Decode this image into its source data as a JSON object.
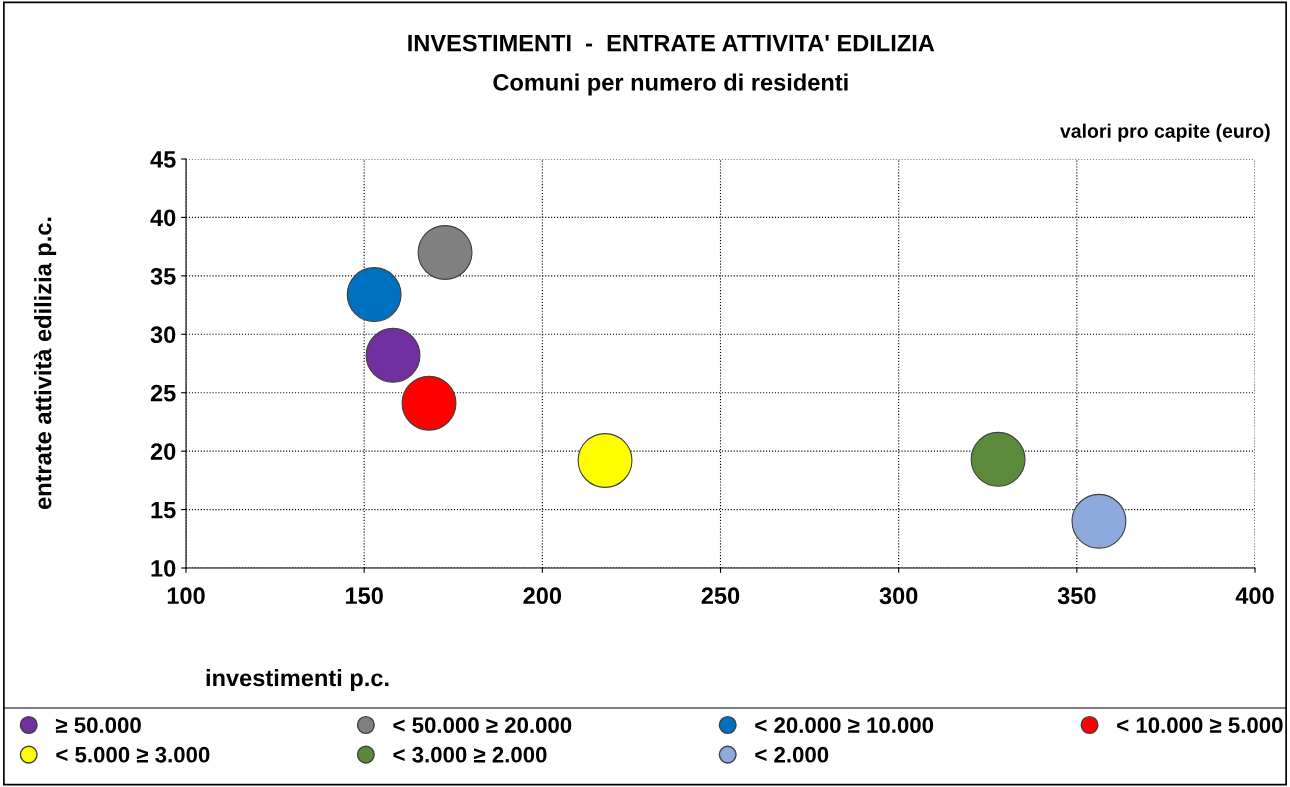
{
  "chart_data": {
    "type": "scatter",
    "title": "INVESTIMENTI  -  ENTRATE ATTIVITA' EDILIZIA",
    "subtitle": "Comuni per numero di residenti",
    "annotations": [
      "valori pro capite (euro)"
    ],
    "xlabel": "investimenti p.c.",
    "ylabel": "entrate attività edilizia p.c.",
    "xlim": [
      100,
      400
    ],
    "xticks": [
      100,
      150,
      200,
      250,
      300,
      350,
      400
    ],
    "ylim": [
      10,
      45
    ],
    "yticks": [
      10,
      15,
      20,
      25,
      30,
      35,
      40,
      45
    ],
    "grid": true,
    "legend": "bottom",
    "marker": "circle",
    "series": [
      {
        "name": "≥ 50.000",
        "color": "#7030a0",
        "x": [
          158.1
        ],
        "values": [
          28.2
        ]
      },
      {
        "name": "< 50.000 ≥ 20.000",
        "color": "#808080",
        "x": [
          172.7
        ],
        "values": [
          37.0
        ]
      },
      {
        "name": "< 20.000 ≥ 10.000",
        "color": "#0070c0",
        "x": [
          152.8
        ],
        "values": [
          33.4
        ]
      },
      {
        "name": "< 10.000 ≥ 5.000",
        "color": "#ff0000",
        "x": [
          168.2
        ],
        "values": [
          24.1
        ]
      },
      {
        "name": "< 5.000 ≥ 3.000",
        "color": "#ffff00",
        "x": [
          217.6
        ],
        "values": [
          19.2
        ]
      },
      {
        "name": "< 3.000 ≥ 2.000",
        "color": "#5a8a3a",
        "x": [
          327.9
        ],
        "values": [
          19.3
        ]
      },
      {
        "name": "< 2.000",
        "color": "#8ea9db",
        "x": [
          356.2
        ],
        "values": [
          14.0
        ]
      }
    ]
  }
}
